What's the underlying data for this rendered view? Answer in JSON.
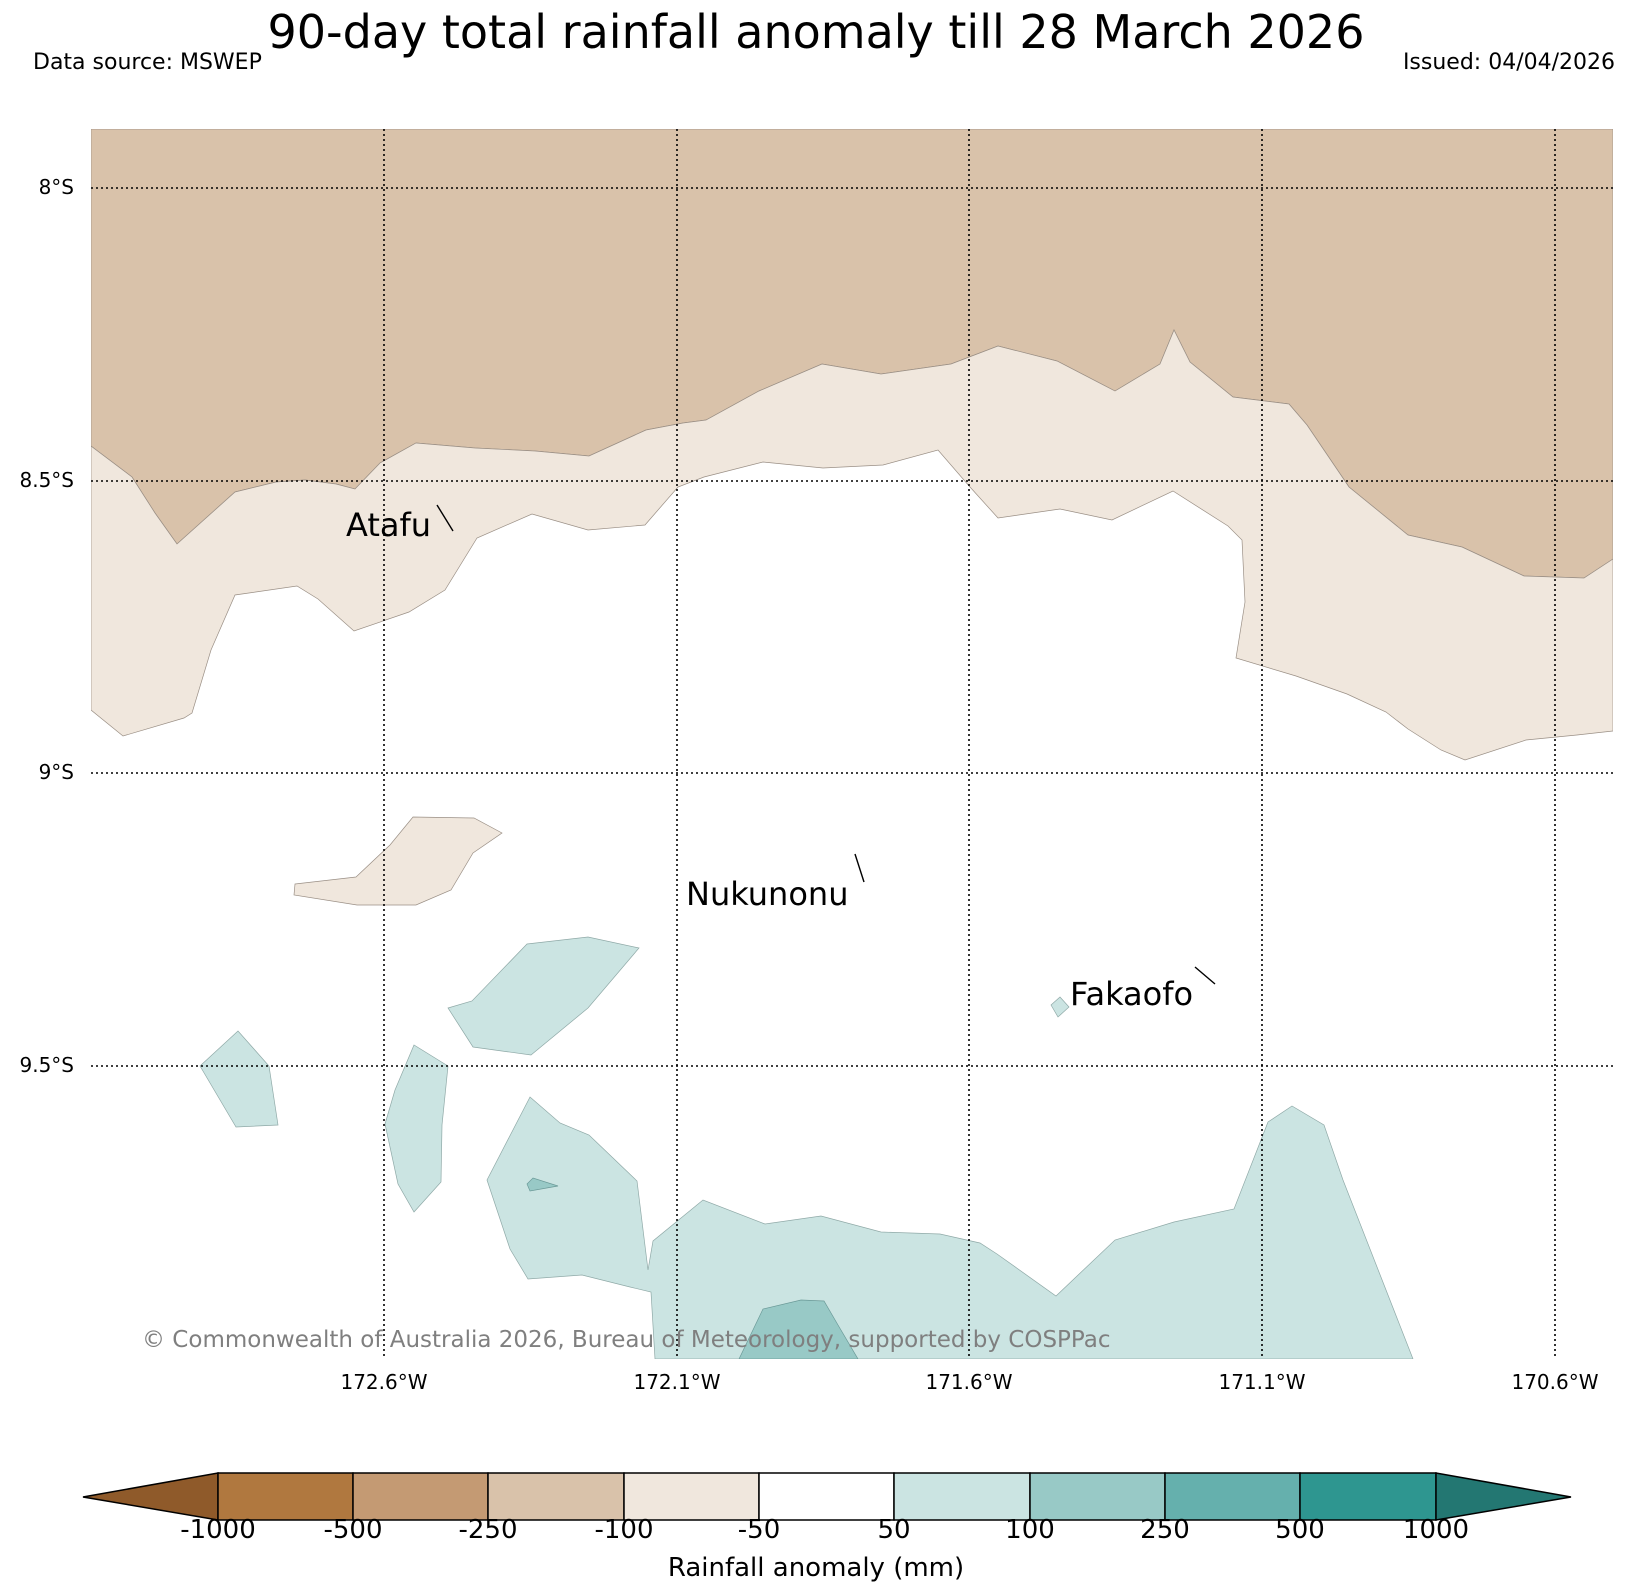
{
  "title": "90-day total rainfall anomaly till 28 March 2026",
  "data_source": "Data source: MSWEP",
  "issued": "Issued: 04/04/2026",
  "copyright": "© Commonwealth of Australia 2026, Bureau of Meteorology, supported by COSPPac",
  "lat_labels": [
    "8°S",
    "8.5°S",
    "9°S",
    "9.5°S"
  ],
  "lon_labels": [
    "172.6°W",
    "172.1°W",
    "171.6°W",
    "171.1°W",
    "170.6°W"
  ],
  "places": [
    {
      "name": "Atafu"
    },
    {
      "name": "Nukunonu"
    },
    {
      "name": "Fakaofo"
    }
  ],
  "colorbar": {
    "title": "Rainfall anomaly (mm)",
    "ticks": [
      "-1000",
      "-500",
      "-250",
      "-100",
      "-50",
      "50",
      "100",
      "250",
      "500",
      "1000"
    ],
    "colors": {
      "lt_minus1000": "#8f5a2a",
      "m1000_m500": "#b0783f",
      "m500_m250": "#c49a73",
      "m250_m100": "#d9c2aa",
      "m100_m50": "#f0e7dd",
      "m50_50": "#ffffff",
      "p50_100": "#cbe4e2",
      "p100_250": "#98c9c6",
      "p250_500": "#65b0ad",
      "p500_1000": "#2e9690",
      "gt_1000": "#237772"
    }
  }
}
